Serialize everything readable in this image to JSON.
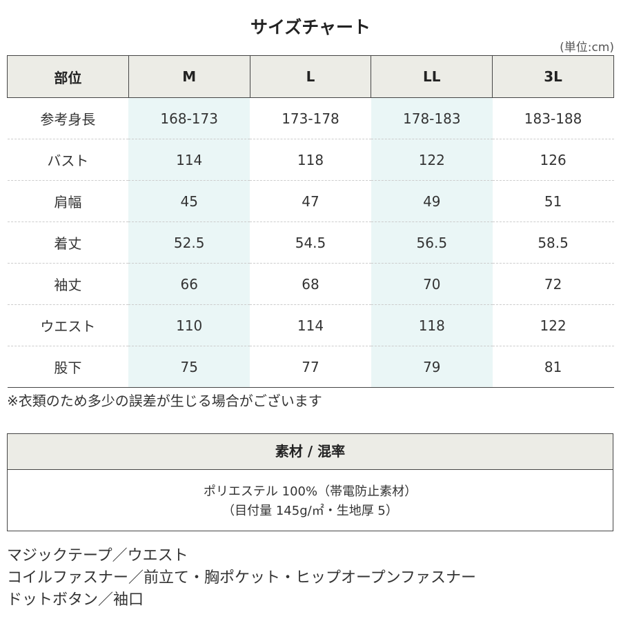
{
  "title": "サイズチャート",
  "unit": "(単位:cm)",
  "size_table": {
    "header": [
      "部位",
      "M",
      "L",
      "LL",
      "3L"
    ],
    "rows": [
      [
        "参考身長",
        "168-173",
        "173-178",
        "178-183",
        "183-188"
      ],
      [
        "バスト",
        114,
        118,
        122,
        126
      ],
      [
        "肩幅",
        45,
        47,
        49,
        51
      ],
      [
        "着丈",
        52.5,
        54.5,
        56.5,
        58.5
      ],
      [
        "袖丈",
        66,
        68,
        70,
        72
      ],
      [
        "ウエスト",
        110,
        114,
        118,
        122
      ],
      [
        "股下",
        75,
        77,
        79,
        81
      ]
    ]
  },
  "note": "※衣類のため多少の誤差が生じる場合がございます",
  "material": {
    "title": "素材 / 混率",
    "lines": [
      "ポリエステル 100%（帯電防止素材）",
      "（目付量 145g/㎡・生地厚 5）"
    ]
  },
  "features": [
    "マジックテープ／ウエスト",
    "コイルファスナー／前立て・胸ポケット・ヒップオープンファスナー",
    "ドットボタン／袖口"
  ]
}
